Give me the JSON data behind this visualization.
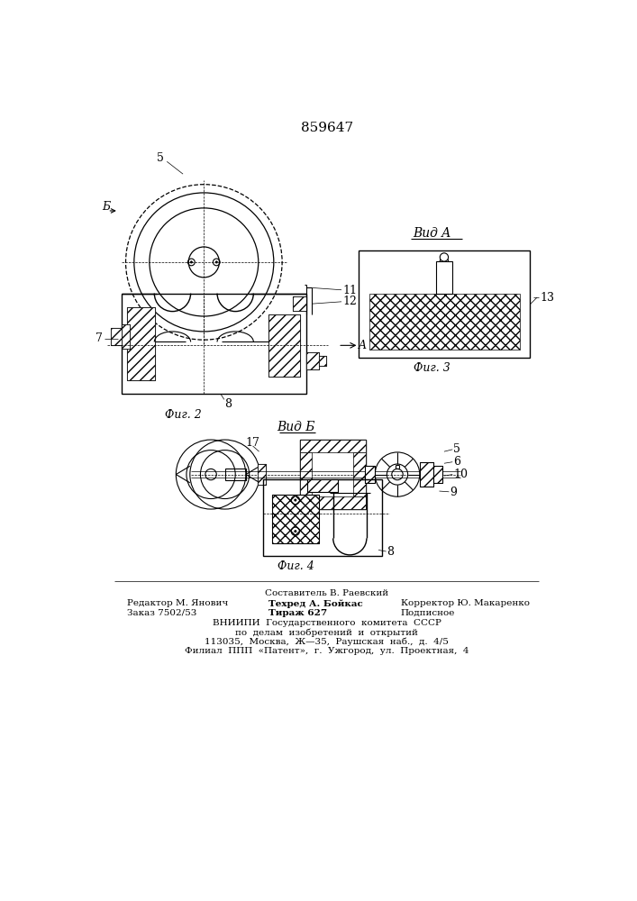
{
  "title": "859647",
  "fig2_label": "Фиг. 2",
  "fig3_label": "Фиг. 3",
  "fig4_label": "Фиг. 4",
  "vid_a_label": "Вид A",
  "vid_b_label": "Вид Б",
  "bg_color": "#ffffff",
  "line_color": "#000000",
  "footer_line1": "Составитель В. Раевский",
  "footer_line2_left": "Редактор М. Янович",
  "footer_line2_mid": "Техред А. Бойкас",
  "footer_line2_right": "Корректор Ю. Макаренко",
  "footer_line3_left": "Заказ 7502/53",
  "footer_line3_mid": "Тираж 627",
  "footer_line3_right": "Подписное",
  "footer_line4": "ВНИИПИ  Государственного  комитета  СССР",
  "footer_line5": "по  делам  изобретений  и  открытий",
  "footer_line6": "113035,  Москва,  Ж—35,  Раушская  наб.,  д.  4/5",
  "footer_line7": "Филиал  ППП  «Патент»,  г.  Ужгород,  ул.  Проектная,  4"
}
